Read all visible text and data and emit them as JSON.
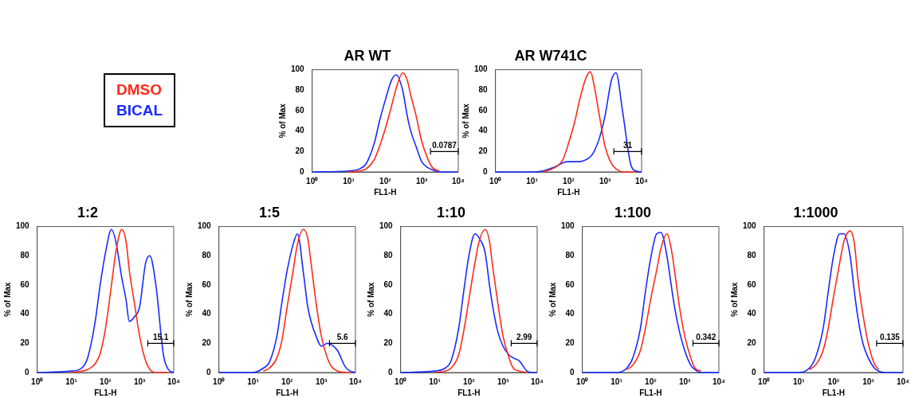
{
  "chart_data": [
    {
      "type": "line",
      "title": "AR WT",
      "xlabel": "FL1-H",
      "ylabel": "% of Max",
      "log": "x",
      "grid": false,
      "legend": "left",
      "xlim": [
        1,
        10000
      ],
      "ylim": [
        0,
        100
      ],
      "xticks": [
        {
          "value": 1,
          "label": "10⁰"
        },
        {
          "value": 10,
          "label": "10¹"
        },
        {
          "value": 100,
          "label": "10²"
        },
        {
          "value": 1000,
          "label": "10³"
        },
        {
          "value": 10000,
          "label": "10⁴"
        }
      ],
      "yticks": [
        0,
        20,
        40,
        60,
        80,
        100
      ],
      "x": [
        1,
        10,
        20,
        30,
        50,
        70,
        100,
        150,
        200,
        300,
        400,
        500,
        700,
        1000,
        1500,
        2000,
        3000,
        5000,
        7000,
        10000
      ],
      "annotations": [
        "0.0787"
      ],
      "series": [
        {
          "name": "DMSO",
          "color": "#ff2a1a",
          "values": [
            null,
            0,
            1,
            3,
            12,
            25,
            42,
            65,
            82,
            97,
            90,
            75,
            55,
            30,
            12,
            4,
            1,
            null,
            null,
            null
          ]
        },
        {
          "name": "BICAL",
          "color": "#1a2aff",
          "values": [
            0,
            1,
            3,
            8,
            28,
            50,
            70,
            90,
            95,
            80,
            55,
            40,
            25,
            10,
            4,
            2,
            0,
            0,
            0,
            0
          ]
        }
      ]
    },
    {
      "type": "line",
      "title": "AR W741C",
      "xlabel": "FL1-H",
      "ylabel": "% of Max",
      "log": "x",
      "grid": false,
      "xlim": [
        1,
        10000
      ],
      "ylim": [
        0,
        100
      ],
      "xticks": [
        {
          "value": 1,
          "label": "10⁰"
        },
        {
          "value": 10,
          "label": "10¹"
        },
        {
          "value": 100,
          "label": "10²"
        },
        {
          "value": 1000,
          "label": "10³"
        },
        {
          "value": 10000,
          "label": "10⁴"
        }
      ],
      "yticks": [
        0,
        20,
        40,
        60,
        80,
        100
      ],
      "x": [
        1,
        10,
        20,
        30,
        50,
        70,
        100,
        150,
        200,
        300,
        400,
        500,
        700,
        1000,
        1500,
        2000,
        3000,
        5000,
        7000,
        10000
      ],
      "annotations": [
        "31"
      ],
      "series": [
        {
          "color": "#ff2a1a",
          "values": [
            null,
            null,
            0,
            2,
            6,
            12,
            28,
            50,
            70,
            92,
            98,
            85,
            55,
            25,
            8,
            3,
            0,
            0,
            0,
            null
          ]
        },
        {
          "color": "#1a2aff",
          "values": [
            0,
            0,
            1,
            3,
            6,
            9,
            10,
            10,
            10,
            12,
            15,
            20,
            33,
            55,
            90,
            97,
            60,
            8,
            1,
            0
          ]
        }
      ]
    },
    {
      "type": "line",
      "title": "1:2",
      "xlabel": "FL1-H",
      "ylabel": "% of Max",
      "log": "x",
      "grid": false,
      "xlim": [
        1,
        10000
      ],
      "ylim": [
        0,
        100
      ],
      "xticks": [
        {
          "value": 1,
          "label": "10⁰"
        },
        {
          "value": 10,
          "label": "10¹"
        },
        {
          "value": 100,
          "label": "10²"
        },
        {
          "value": 1000,
          "label": "10³"
        },
        {
          "value": 10000,
          "label": "10⁴"
        }
      ],
      "yticks": [
        0,
        20,
        40,
        60,
        80,
        100
      ],
      "x": [
        1,
        10,
        20,
        30,
        50,
        70,
        100,
        150,
        200,
        300,
        400,
        500,
        700,
        1000,
        1500,
        2000,
        3000,
        5000,
        7000,
        10000
      ],
      "annotations": [
        "15.1"
      ],
      "series": [
        {
          "color": "#ff2a1a",
          "values": [
            null,
            0,
            1,
            2,
            6,
            13,
            30,
            60,
            82,
            98,
            90,
            70,
            48,
            25,
            8,
            2,
            0,
            0,
            0,
            null
          ]
        },
        {
          "color": "#1a2aff",
          "values": [
            0,
            1,
            3,
            10,
            35,
            60,
            82,
            98,
            90,
            65,
            50,
            35,
            38,
            45,
            75,
            80,
            60,
            12,
            2,
            0
          ]
        }
      ]
    },
    {
      "type": "line",
      "title": "1:5",
      "xlabel": "FL1-H",
      "ylabel": "% of Max",
      "log": "x",
      "grid": false,
      "xlim": [
        1,
        10000
      ],
      "ylim": [
        0,
        100
      ],
      "xticks": [
        {
          "value": 1,
          "label": "10⁰"
        },
        {
          "value": 10,
          "label": "10¹"
        },
        {
          "value": 100,
          "label": "10²"
        },
        {
          "value": 1000,
          "label": "10³"
        },
        {
          "value": 10000,
          "label": "10⁴"
        }
      ],
      "yticks": [
        0,
        20,
        40,
        60,
        80,
        100
      ],
      "x": [
        1,
        10,
        20,
        30,
        50,
        70,
        100,
        150,
        200,
        300,
        400,
        500,
        700,
        1000,
        1500,
        2000,
        3000,
        5000,
        7000,
        10000
      ],
      "annotations": [
        "5.6"
      ],
      "series": [
        {
          "color": "#ff2a1a",
          "values": [
            null,
            null,
            1,
            3,
            10,
            22,
            45,
            70,
            88,
            98,
            92,
            75,
            48,
            25,
            10,
            4,
            1,
            0,
            0,
            null
          ]
        },
        {
          "color": "#1a2aff",
          "values": [
            0,
            0,
            3,
            7,
            25,
            48,
            70,
            88,
            95,
            68,
            45,
            35,
            25,
            18,
            20,
            19,
            15,
            4,
            1,
            0
          ]
        }
      ]
    },
    {
      "type": "line",
      "title": "1:10",
      "xlabel": "FL1-H",
      "ylabel": "% of Max",
      "log": "x",
      "grid": false,
      "xlim": [
        1,
        10000
      ],
      "ylim": [
        0,
        100
      ],
      "xticks": [
        {
          "value": 1,
          "label": "10⁰"
        },
        {
          "value": 10,
          "label": "10¹"
        },
        {
          "value": 100,
          "label": "10²"
        },
        {
          "value": 1000,
          "label": "10³"
        },
        {
          "value": 10000,
          "label": "10⁴"
        }
      ],
      "yticks": [
        0,
        20,
        40,
        60,
        80,
        100
      ],
      "x": [
        1,
        10,
        20,
        30,
        50,
        70,
        100,
        150,
        200,
        300,
        400,
        500,
        700,
        1000,
        1500,
        2000,
        3000,
        5000,
        7000,
        10000
      ],
      "annotations": [
        "2.99"
      ],
      "series": [
        {
          "color": "#ff2a1a",
          "values": [
            null,
            0,
            1,
            3,
            12,
            28,
            50,
            75,
            90,
            98,
            90,
            72,
            48,
            25,
            10,
            3,
            1,
            0,
            null,
            null
          ]
        },
        {
          "color": "#1a2aff",
          "values": [
            0,
            1,
            3,
            8,
            30,
            55,
            80,
            95,
            92,
            82,
            60,
            45,
            28,
            18,
            12,
            10,
            8,
            1,
            0,
            0
          ]
        }
      ]
    },
    {
      "type": "line",
      "title": "1:100",
      "xlabel": "FL1-H",
      "ylabel": "% of Max",
      "log": "x",
      "grid": false,
      "xlim": [
        1,
        10000
      ],
      "ylim": [
        0,
        100
      ],
      "xticks": [
        {
          "value": 1,
          "label": "10⁰"
        },
        {
          "value": 10,
          "label": "10¹"
        },
        {
          "value": 100,
          "label": "10²"
        },
        {
          "value": 1000,
          "label": "10³"
        },
        {
          "value": 10000,
          "label": "10⁴"
        }
      ],
      "yticks": [
        0,
        20,
        40,
        60,
        80,
        100
      ],
      "x": [
        1,
        10,
        20,
        30,
        50,
        70,
        100,
        150,
        200,
        300,
        400,
        500,
        700,
        1000,
        1500,
        2000,
        3000,
        5000,
        7000,
        10000
      ],
      "annotations": [
        "0.342"
      ],
      "series": [
        {
          "color": "#ff2a1a",
          "values": [
            null,
            null,
            2,
            5,
            15,
            30,
            50,
            70,
            85,
            95,
            85,
            70,
            45,
            25,
            10,
            3,
            1,
            null,
            null,
            null
          ]
        },
        {
          "color": "#1a2aff",
          "values": [
            0,
            0,
            3,
            10,
            30,
            55,
            78,
            95,
            96,
            80,
            60,
            45,
            28,
            15,
            5,
            2,
            0,
            0,
            0,
            0
          ]
        }
      ]
    },
    {
      "type": "line",
      "title": "1:1000",
      "xlabel": "FL1-H",
      "ylabel": "% of Max",
      "log": "x",
      "grid": false,
      "xlim": [
        1,
        10000
      ],
      "ylim": [
        0,
        100
      ],
      "xticks": [
        {
          "value": 1,
          "label": "10⁰"
        },
        {
          "value": 10,
          "label": "10¹"
        },
        {
          "value": 100,
          "label": "10²"
        },
        {
          "value": 1000,
          "label": "10³"
        },
        {
          "value": 10000,
          "label": "10⁴"
        }
      ],
      "yticks": [
        0,
        20,
        40,
        60,
        80,
        100
      ],
      "x": [
        1,
        10,
        20,
        30,
        50,
        70,
        100,
        150,
        200,
        300,
        400,
        500,
        700,
        1000,
        1500,
        2000,
        3000,
        5000,
        7000,
        10000
      ],
      "annotations": [
        "0.135"
      ],
      "series": [
        {
          "color": "#ff2a1a",
          "values": [
            null,
            null,
            2,
            5,
            15,
            30,
            52,
            75,
            90,
            97,
            88,
            65,
            40,
            20,
            6,
            2,
            null,
            null,
            null,
            null
          ]
        },
        {
          "color": "#1a2aff",
          "values": [
            0,
            0,
            3,
            10,
            30,
            55,
            80,
            95,
            95,
            80,
            55,
            38,
            20,
            10,
            3,
            1,
            0,
            0,
            0,
            0
          ]
        }
      ]
    }
  ]
}
